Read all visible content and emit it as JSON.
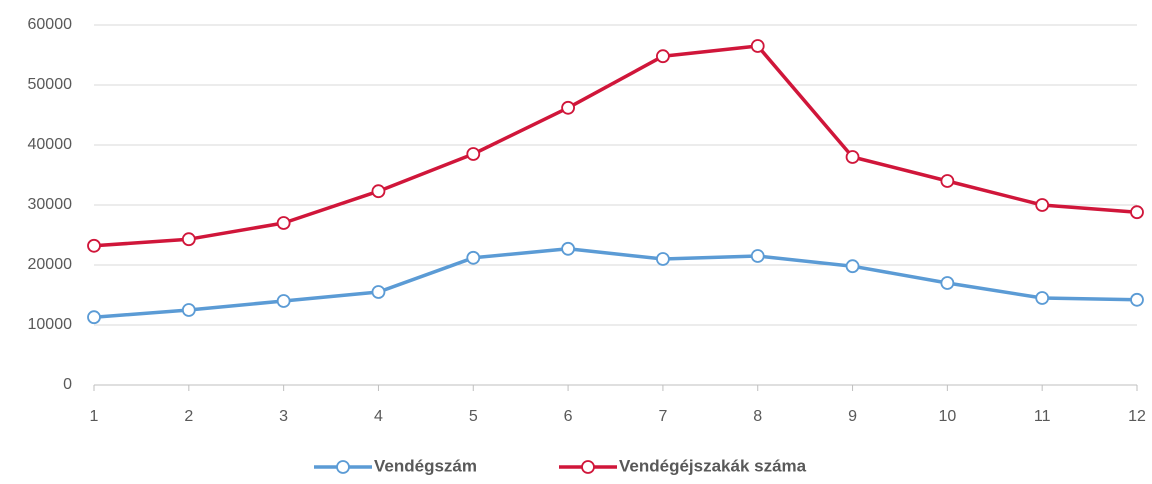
{
  "chart_data": {
    "type": "line",
    "x": [
      1,
      2,
      3,
      4,
      5,
      6,
      7,
      8,
      9,
      10,
      11,
      12
    ],
    "xlim": [
      1,
      12
    ],
    "xticks": [
      1,
      2,
      3,
      4,
      5,
      6,
      7,
      8,
      9,
      10,
      11,
      12
    ],
    "ylim": [
      0,
      60000
    ],
    "yticks": [
      0,
      10000,
      20000,
      30000,
      40000,
      50000,
      60000
    ],
    "grid": true,
    "legend": "bottom",
    "series": [
      {
        "name": "Vendégszám",
        "color": "#5b9bd5",
        "values": [
          11300,
          12500,
          14000,
          15500,
          21200,
          22700,
          21000,
          21500,
          19800,
          17000,
          14500,
          14200
        ]
      },
      {
        "name": "Vendégéjszakák száma",
        "color": "#d0163a",
        "values": [
          23200,
          24300,
          27000,
          32300,
          38500,
          46200,
          54800,
          56500,
          38000,
          34000,
          30000,
          28800
        ]
      }
    ]
  }
}
